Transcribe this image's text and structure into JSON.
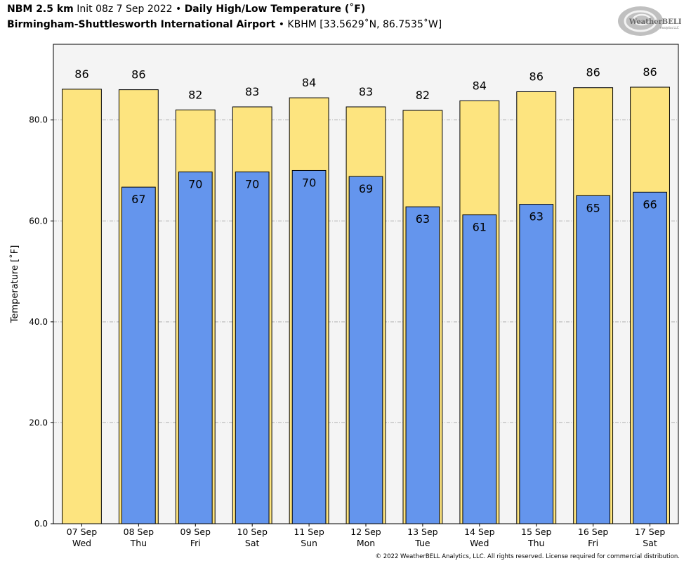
{
  "header": {
    "model": "NBM 2.5 km",
    "init": "Init 08z 7 Sep 2022",
    "sep": "•",
    "product": "Daily High/Low Temperature (˚F)",
    "location": "Birmingham-Shuttlesworth International Airport",
    "station": "KBHM [33.5629˚N, 86.7535˚W]"
  },
  "logo": {
    "text_main": "WeatherBELL",
    "text_sub": "Analytics LLC"
  },
  "copyright": "© 2022 WeatherBELL Analytics, LLC. All rights reserved. License required for commercial distribution.",
  "colors": {
    "high": "#fde47f",
    "low": "#6495ed",
    "plot_bg": "#f4f4f4",
    "grid": "#b0b0b0"
  },
  "chart_data": {
    "type": "bar",
    "ylabel": "Temperature [˚F]",
    "xlabel": "",
    "ylim": [
      0,
      95
    ],
    "yticks": [
      0,
      20,
      40,
      60,
      80
    ],
    "ytick_labels": [
      "0.0",
      "20.0",
      "40.0",
      "60.0",
      "80.0"
    ],
    "grid": "horizontal dashed",
    "categories": [
      [
        "07 Sep",
        "Wed"
      ],
      [
        "08 Sep",
        "Thu"
      ],
      [
        "09 Sep",
        "Fri"
      ],
      [
        "10 Sep",
        "Sat"
      ],
      [
        "11 Sep",
        "Sun"
      ],
      [
        "12 Sep",
        "Mon"
      ],
      [
        "13 Sep",
        "Tue"
      ],
      [
        "14 Sep",
        "Wed"
      ],
      [
        "15 Sep",
        "Thu"
      ],
      [
        "16 Sep",
        "Fri"
      ],
      [
        "17 Sep",
        "Sat"
      ]
    ],
    "series": [
      {
        "name": "High",
        "values": [
          86.1,
          86.0,
          82.0,
          82.6,
          84.4,
          82.6,
          81.9,
          83.8,
          85.6,
          86.4,
          86.5
        ],
        "labels": [
          "86",
          "86",
          "82",
          "83",
          "84",
          "83",
          "82",
          "84",
          "86",
          "86",
          "86"
        ]
      },
      {
        "name": "Low",
        "values": [
          null,
          66.7,
          69.7,
          69.7,
          70.0,
          68.8,
          62.8,
          61.2,
          63.3,
          65.0,
          65.7
        ],
        "labels": [
          "",
          "67",
          "70",
          "70",
          "70",
          "69",
          "63",
          "61",
          "63",
          "65",
          "66"
        ]
      }
    ]
  }
}
